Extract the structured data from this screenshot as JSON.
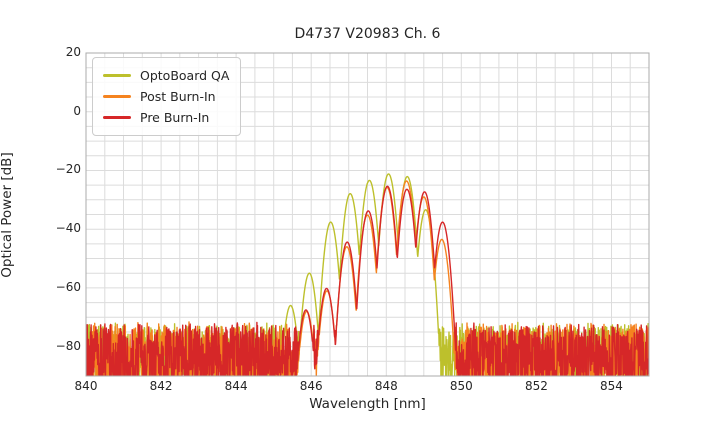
{
  "chart_data": {
    "type": "line",
    "title": "D4737 V20983 Ch. 6",
    "xlabel": "Wavelength [nm]",
    "ylabel": "Optical Power [dB]",
    "xlim": [
      840,
      855
    ],
    "ylim": [
      -90,
      20
    ],
    "x_ticks": [
      840,
      842,
      844,
      846,
      848,
      850,
      852,
      854
    ],
    "y_ticks": [
      20,
      0,
      -20,
      -40,
      -60,
      -80
    ],
    "x_grid_step_nm": 0.5,
    "y_grid_step_db": 5,
    "grid": true,
    "legend_position": "upper left",
    "colors": {
      "grid": "#dcdcdc",
      "spine": "#ababab",
      "text": "#262626",
      "background": "#ffffff"
    },
    "noise_floor": {
      "top_db": -71.5,
      "jitter_db": 3,
      "depth_db": 22
    },
    "sample_step_nm": 0.008,
    "lobe_sharpness_db_per_nm2": 360,
    "series": [
      {
        "name": "OptoBoard QA",
        "color": "#bdc02c",
        "seed": 101,
        "lobes": [
          [
            845.45,
            -66
          ],
          [
            845.95,
            -55
          ],
          [
            846.52,
            -37.6
          ],
          [
            847.04,
            -27.9
          ],
          [
            847.55,
            -23.4
          ],
          [
            848.06,
            -21.2
          ],
          [
            848.56,
            -22.1
          ],
          [
            849.05,
            -33.4
          ]
        ]
      },
      {
        "name": "Post Burn-In",
        "color": "#f5831f",
        "seed": 202,
        "lobes": [
          [
            845.88,
            -68
          ],
          [
            846.42,
            -61
          ],
          [
            846.95,
            -46
          ],
          [
            847.5,
            -35.2
          ],
          [
            848.02,
            -25.8
          ],
          [
            848.54,
            -23.6
          ],
          [
            849.0,
            -29
          ],
          [
            849.48,
            -43.5
          ]
        ]
      },
      {
        "name": "Pre Burn-In",
        "color": "#d62728",
        "seed": 303,
        "lobes": [
          [
            845.86,
            -67.5
          ],
          [
            846.41,
            -60.2
          ],
          [
            846.96,
            -44.4
          ],
          [
            847.52,
            -33.8
          ],
          [
            848.03,
            -25.4
          ],
          [
            848.55,
            -26.4
          ],
          [
            849.02,
            -27.3
          ],
          [
            849.5,
            -37.6
          ]
        ]
      }
    ]
  }
}
